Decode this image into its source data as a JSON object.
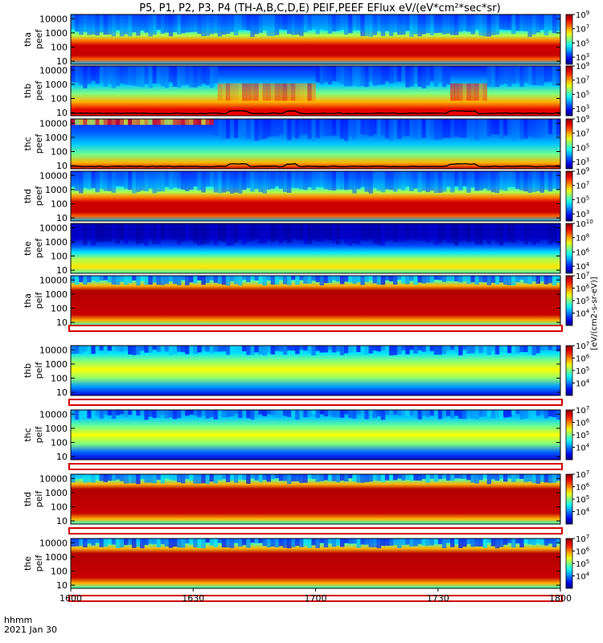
{
  "chart_data": {
    "type": "heatmap",
    "title": "P5, P1, P2, P3, P4 (TH-A,B,C,D,E) PEIF,PEEF EFlux eV/(eV*cm²*sec*sr)",
    "x_ticks": [
      "1600",
      "1630",
      "1700",
      "1730",
      "1800"
    ],
    "xlabel_line1": "hhmm",
    "xlabel_line2": "2021 Jan 30",
    "y_ticks": [
      "10",
      "100",
      "1000",
      "10000"
    ],
    "y_scale": "log",
    "colorbar_side_label": "[eV/(cm2-s-sr-eV)]",
    "panels": [
      {
        "probe": "tha",
        "product": "peef",
        "ylim": [
          6,
          20000
        ],
        "clim_exp": [
          2,
          9
        ],
        "pattern": "peef_quiet",
        "scpot": false
      },
      {
        "probe": "thb",
        "product": "peef",
        "ylim": [
          6,
          20000
        ],
        "clim_exp": [
          2,
          9
        ],
        "pattern": "peef_active",
        "scpot": true
      },
      {
        "probe": "thc",
        "product": "peef",
        "ylim": [
          6,
          20000
        ],
        "clim_exp": [
          2,
          9
        ],
        "pattern": "peef_early",
        "scpot": true
      },
      {
        "probe": "thd",
        "product": "peef",
        "ylim": [
          6,
          20000
        ],
        "clim_exp": [
          2,
          9
        ],
        "pattern": "peef_quiet",
        "scpot": false
      },
      {
        "probe": "the",
        "product": "peef",
        "ylim": [
          6,
          20000
        ],
        "clim_exp": [
          3,
          10
        ],
        "pattern": "peef_low",
        "scpot": false
      },
      {
        "probe": "tha",
        "product": "peif",
        "ylim": [
          6,
          20000
        ],
        "clim_exp": [
          3,
          7
        ],
        "pattern": "peif_hot",
        "scpot": false
      },
      {
        "probe": "thb",
        "product": "peif",
        "ylim": [
          6,
          20000
        ],
        "clim_exp": [
          3,
          7
        ],
        "pattern": "peif_patchy",
        "scpot": false
      },
      {
        "probe": "thc",
        "product": "peif",
        "ylim": [
          6,
          20000
        ],
        "clim_exp": [
          3,
          7
        ],
        "pattern": "peif_patchy2",
        "scpot": false
      },
      {
        "probe": "thd",
        "product": "peif",
        "ylim": [
          6,
          20000
        ],
        "clim_exp": [
          3,
          7
        ],
        "pattern": "peif_hot",
        "scpot": false
      },
      {
        "probe": "the",
        "product": "peif",
        "ylim": [
          6,
          20000
        ],
        "clim_exp": [
          3,
          7
        ],
        "pattern": "peif_hot",
        "scpot": false
      }
    ]
  }
}
